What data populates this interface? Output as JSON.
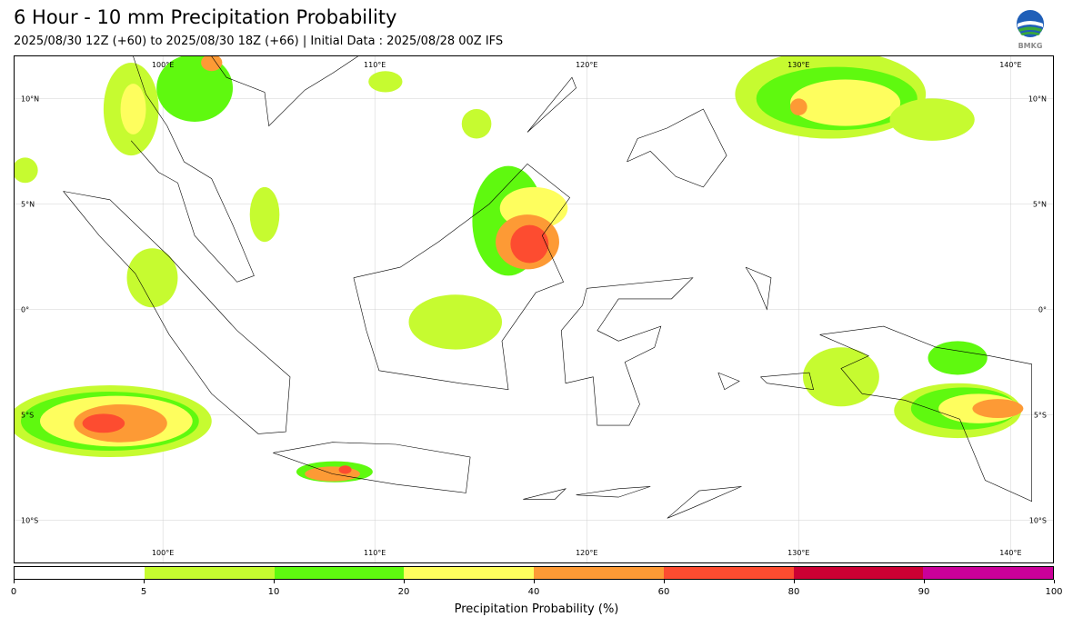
{
  "header": {
    "title": "6 Hour - 10 mm Precipitation Probability",
    "subtitle": "2025/08/30 12Z (+60) to 2025/08/30 18Z (+66) | Initial Data : 2025/08/28 00Z IFS"
  },
  "logo": {
    "text": "BMKG",
    "icon": "bmkg-logo"
  },
  "map": {
    "lon_range": [
      93,
      142
    ],
    "lat_range": [
      -12,
      12
    ],
    "grid": true,
    "lon_labels": [
      "100°E",
      "110°E",
      "120°E",
      "130°E",
      "140°E"
    ],
    "lon_values": [
      100,
      110,
      120,
      130,
      140
    ],
    "lat_labels": [
      "10°N",
      "5°N",
      "0°",
      "5°S",
      "10°S"
    ],
    "lat_values": [
      10,
      5,
      0,
      -5,
      -10
    ],
    "precip_regions": [
      {
        "lon": 98.5,
        "lat": 9.5,
        "rx": 1.3,
        "ry": 2.2,
        "level": 1
      },
      {
        "lon": 98.6,
        "lat": 9.5,
        "rx": 0.6,
        "ry": 1.2,
        "level": 3
      },
      {
        "lon": 101.5,
        "lat": 10.5,
        "rx": 1.8,
        "ry": 1.6,
        "level": 2
      },
      {
        "lon": 102.3,
        "lat": 11.7,
        "rx": 0.5,
        "ry": 0.4,
        "level": 4
      },
      {
        "lon": 104.8,
        "lat": 4.5,
        "rx": 0.7,
        "ry": 1.3,
        "level": 1
      },
      {
        "lon": 99.5,
        "lat": 1.5,
        "rx": 1.2,
        "ry": 1.4,
        "level": 1
      },
      {
        "lon": 93.5,
        "lat": 6.6,
        "rx": 0.6,
        "ry": 0.6,
        "level": 1
      },
      {
        "lon": 97.5,
        "lat": -5.3,
        "rx": 4.8,
        "ry": 1.7,
        "level": 1
      },
      {
        "lon": 97.5,
        "lat": -5.3,
        "rx": 4.2,
        "ry": 1.4,
        "level": 2
      },
      {
        "lon": 97.8,
        "lat": -5.3,
        "rx": 3.6,
        "ry": 1.2,
        "level": 3
      },
      {
        "lon": 98.0,
        "lat": -5.4,
        "rx": 2.2,
        "ry": 0.9,
        "level": 4
      },
      {
        "lon": 97.2,
        "lat": -5.4,
        "rx": 1.0,
        "ry": 0.45,
        "level": 5
      },
      {
        "lon": 108.1,
        "lat": -7.7,
        "rx": 1.8,
        "ry": 0.5,
        "level": 2
      },
      {
        "lon": 108.0,
        "lat": -7.8,
        "rx": 1.3,
        "ry": 0.35,
        "level": 4
      },
      {
        "lon": 108.6,
        "lat": -7.6,
        "rx": 0.3,
        "ry": 0.2,
        "level": 5
      },
      {
        "lon": 110.5,
        "lat": 10.8,
        "rx": 0.8,
        "ry": 0.5,
        "level": 1
      },
      {
        "lon": 114.8,
        "lat": 8.8,
        "rx": 0.7,
        "ry": 0.7,
        "level": 1
      },
      {
        "lon": 116.3,
        "lat": 4.2,
        "rx": 1.7,
        "ry": 2.6,
        "level": 2
      },
      {
        "lon": 117.5,
        "lat": 4.8,
        "rx": 1.6,
        "ry": 1.0,
        "level": 3
      },
      {
        "lon": 117.2,
        "lat": 3.2,
        "rx": 1.5,
        "ry": 1.3,
        "level": 4
      },
      {
        "lon": 117.3,
        "lat": 3.1,
        "rx": 0.9,
        "ry": 0.9,
        "level": 5
      },
      {
        "lon": 113.8,
        "lat": -0.6,
        "rx": 2.2,
        "ry": 1.3,
        "level": 1
      },
      {
        "lon": 131.5,
        "lat": 10.2,
        "rx": 4.5,
        "ry": 2.1,
        "level": 1
      },
      {
        "lon": 131.8,
        "lat": 10.0,
        "rx": 3.8,
        "ry": 1.5,
        "level": 2
      },
      {
        "lon": 132.2,
        "lat": 9.8,
        "rx": 2.6,
        "ry": 1.1,
        "level": 3
      },
      {
        "lon": 130.0,
        "lat": 9.6,
        "rx": 0.4,
        "ry": 0.4,
        "level": 4
      },
      {
        "lon": 136.3,
        "lat": 9.0,
        "rx": 2.0,
        "ry": 1.0,
        "level": 1
      },
      {
        "lon": 132.0,
        "lat": -3.2,
        "rx": 1.8,
        "ry": 1.4,
        "level": 1
      },
      {
        "lon": 137.5,
        "lat": -2.3,
        "rx": 1.4,
        "ry": 0.8,
        "level": 2
      },
      {
        "lon": 137.5,
        "lat": -4.8,
        "rx": 3.0,
        "ry": 1.3,
        "level": 1
      },
      {
        "lon": 137.8,
        "lat": -4.7,
        "rx": 2.5,
        "ry": 1.0,
        "level": 2
      },
      {
        "lon": 138.5,
        "lat": -4.7,
        "rx": 1.9,
        "ry": 0.7,
        "level": 3
      },
      {
        "lon": 139.4,
        "lat": -4.7,
        "rx": 1.2,
        "ry": 0.45,
        "level": 4
      }
    ]
  },
  "colorbar": {
    "label": "Precipitation Probability (%)",
    "ticks": [
      "0",
      "5",
      "10",
      "20",
      "40",
      "60",
      "80",
      "90",
      "100"
    ],
    "colors": [
      "#ffffff",
      "#c6fb30",
      "#5ff90f",
      "#fefe5e",
      "#fd9a35",
      "#fd4c30",
      "#cc0033",
      "#cb0099"
    ]
  },
  "colors": {
    "coastline": "#000000",
    "gridline": "#d0d0d0"
  }
}
